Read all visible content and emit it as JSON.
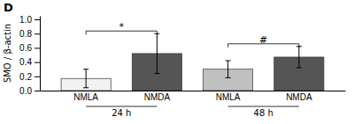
{
  "chart_data": {
    "type": "bar",
    "title": "D",
    "ylabel": "SMO / β-actin",
    "categories": [
      "NMLA",
      "NMDA",
      "NMLA",
      "NMDA"
    ],
    "values": [
      0.17,
      0.52,
      0.3,
      0.47
    ],
    "errors": [
      0.13,
      0.28,
      0.12,
      0.15
    ],
    "colors": [
      "#f2f2f2",
      "#555555",
      "#c0c0c0",
      "#555555"
    ],
    "groups": [
      "24 h",
      "48 h"
    ],
    "annotations": [
      "*",
      "#"
    ],
    "ylim": [
      0,
      1.05
    ],
    "yticks": [
      {
        "value": 0.0,
        "label": "0.0"
      },
      {
        "value": 0.2,
        "label": "0.2"
      },
      {
        "value": 0.4,
        "label": "0.4"
      },
      {
        "value": 0.6,
        "label": "0.6"
      },
      {
        "value": 0.8,
        "label": "0.8"
      },
      {
        "value": 1.0,
        "label": "1.0"
      }
    ],
    "grid": false
  }
}
